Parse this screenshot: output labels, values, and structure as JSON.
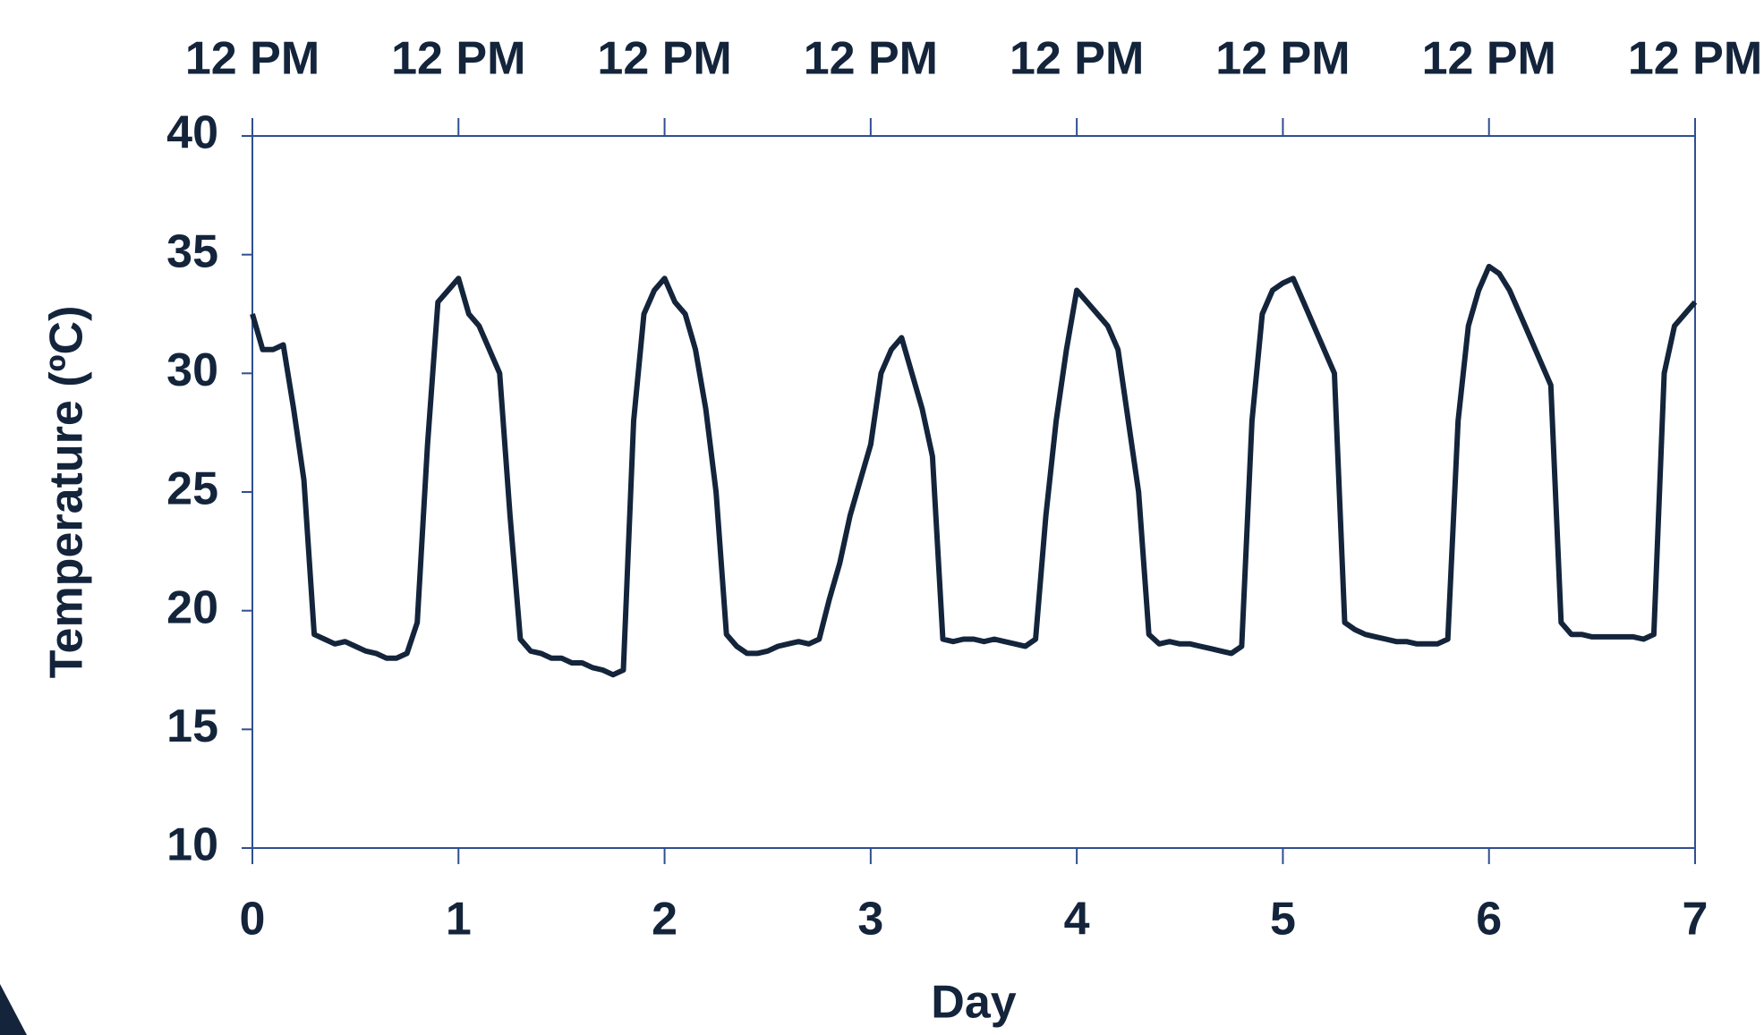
{
  "chart_data": {
    "type": "line",
    "xlabel": "Day",
    "ylabel": "Temperature (ºC)",
    "color": "#13243b",
    "xlim": [
      0,
      7
    ],
    "xticks": [
      0,
      1,
      2,
      3,
      4,
      5,
      6,
      7
    ],
    "x2lim": [
      0,
      7
    ],
    "x2ticks": [
      {
        "value": 0,
        "label": "12 PM"
      },
      {
        "value": 1,
        "label": "12 PM"
      },
      {
        "value": 2,
        "label": "12 PM"
      },
      {
        "value": 3,
        "label": "12 PM"
      },
      {
        "value": 4,
        "label": "12 PM"
      },
      {
        "value": 5,
        "label": "12 PM"
      },
      {
        "value": 6,
        "label": "12 PM"
      },
      {
        "value": 7,
        "label": "12 PM"
      }
    ],
    "ylim": [
      10,
      40
    ],
    "yticks": [
      10,
      15,
      20,
      25,
      30,
      35,
      40
    ],
    "x": [
      0,
      0.05,
      0.1,
      0.15,
      0.2,
      0.25,
      0.3,
      0.35,
      0.4,
      0.45,
      0.5,
      0.55,
      0.6,
      0.65,
      0.7,
      0.75,
      0.8,
      0.85,
      0.9,
      0.95,
      1,
      1.05,
      1.1,
      1.15,
      1.2,
      1.25,
      1.3,
      1.35,
      1.4,
      1.45,
      1.5,
      1.55,
      1.6,
      1.65,
      1.7,
      1.75,
      1.8,
      1.85,
      1.9,
      1.95,
      2,
      2.05,
      2.1,
      2.15,
      2.2,
      2.25,
      2.3,
      2.35,
      2.4,
      2.45,
      2.5,
      2.55,
      2.6,
      2.65,
      2.7,
      2.75,
      2.8,
      2.85,
      2.9,
      2.95,
      3,
      3.05,
      3.1,
      3.15,
      3.2,
      3.25,
      3.3,
      3.35,
      3.4,
      3.45,
      3.5,
      3.55,
      3.6,
      3.65,
      3.7,
      3.75,
      3.8,
      3.85,
      3.9,
      3.95,
      4,
      4.05,
      4.1,
      4.15,
      4.2,
      4.25,
      4.3,
      4.35,
      4.4,
      4.45,
      4.5,
      4.55,
      4.6,
      4.65,
      4.7,
      4.75,
      4.8,
      4.85,
      4.9,
      4.95,
      5,
      5.05,
      5.1,
      5.15,
      5.2,
      5.25,
      5.3,
      5.35,
      5.4,
      5.45,
      5.5,
      5.55,
      5.6,
      5.65,
      5.7,
      5.75,
      5.8,
      5.85,
      5.9,
      5.95,
      6,
      6.05,
      6.1,
      6.15,
      6.2,
      6.25,
      6.3,
      6.35,
      6.4,
      6.45,
      6.5,
      6.55,
      6.6,
      6.65,
      6.7,
      6.75,
      6.8,
      6.85,
      6.9,
      6.95,
      7
    ],
    "values": [
      32.5,
      31,
      31,
      31.2,
      28.5,
      25.5,
      19,
      18.8,
      18.6,
      18.7,
      18.5,
      18.3,
      18.2,
      18,
      18,
      18.2,
      19.5,
      27,
      33,
      33.5,
      34,
      32.5,
      32,
      31,
      30,
      24,
      18.8,
      18.3,
      18.2,
      18,
      18,
      17.8,
      17.8,
      17.6,
      17.5,
      17.3,
      17.5,
      28,
      32.5,
      33.5,
      34,
      33,
      32.5,
      31,
      28.5,
      25,
      19,
      18.5,
      18.2,
      18.2,
      18.3,
      18.5,
      18.6,
      18.7,
      18.6,
      18.8,
      20.5,
      22,
      24,
      25.5,
      27,
      30,
      31,
      31.5,
      30,
      28.5,
      26.5,
      18.8,
      18.7,
      18.8,
      18.8,
      18.7,
      18.8,
      18.7,
      18.6,
      18.5,
      18.8,
      24,
      28,
      31,
      33.5,
      33,
      32.5,
      32,
      31,
      28,
      25,
      19,
      18.6,
      18.7,
      18.6,
      18.6,
      18.5,
      18.4,
      18.3,
      18.2,
      18.5,
      28,
      32.5,
      33.5,
      33.8,
      34,
      33,
      32,
      31,
      30,
      19.5,
      19.2,
      19,
      18.9,
      18.8,
      18.7,
      18.7,
      18.6,
      18.6,
      18.6,
      18.8,
      28,
      32,
      33.5,
      34.5,
      34.2,
      33.5,
      32.5,
      31.5,
      30.5,
      29.5,
      19.5,
      19,
      19,
      18.9,
      18.9,
      18.9,
      18.9,
      18.9,
      18.8,
      19,
      30,
      32,
      32.5,
      33
    ]
  }
}
